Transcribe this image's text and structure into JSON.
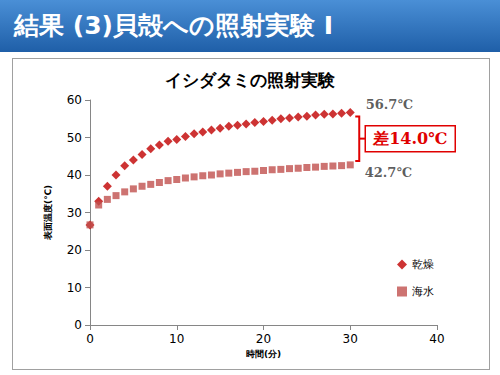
{
  "header": {
    "title": "結果 (3)貝殻への照射実験 I"
  },
  "chart_data": {
    "type": "scatter",
    "title": "イシダタミの照射実験",
    "x_label": "時間(分)",
    "y_label": "表面温度(℃)",
    "x": [
      0,
      1,
      2,
      3,
      4,
      5,
      6,
      7,
      8,
      9,
      10,
      11,
      12,
      13,
      14,
      15,
      16,
      17,
      18,
      19,
      20,
      21,
      22,
      23,
      24,
      25,
      26,
      27,
      28,
      29,
      30
    ],
    "series": [
      {
        "name": "乾燥",
        "color": "#c00000",
        "marker": "diamond",
        "values": [
          26.7,
          33,
          37,
          40,
          42.5,
          44,
          45.5,
          47,
          48,
          49,
          49.5,
          50.3,
          51,
          51.5,
          52,
          52.5,
          53,
          53.3,
          53.6,
          54,
          54.3,
          54.6,
          55,
          55.2,
          55.5,
          55.7,
          56,
          56.2,
          56.3,
          56.5,
          56.7
        ]
      },
      {
        "name": "海水",
        "color": "#c0504d",
        "marker": "square",
        "values": [
          26.7,
          32,
          33.5,
          34.5,
          35.5,
          36.3,
          37,
          37.5,
          38,
          38.5,
          38.8,
          39.2,
          39.5,
          39.8,
          40,
          40.3,
          40.5,
          40.7,
          40.9,
          41,
          41.2,
          41.4,
          41.5,
          41.7,
          41.8,
          42,
          42.1,
          42.3,
          42.4,
          42.5,
          42.7
        ]
      }
    ],
    "xlim": [
      0,
      40
    ],
    "xticks": [
      0,
      10,
      20,
      30,
      40
    ],
    "ylim": [
      0,
      60
    ],
    "yticks": [
      0,
      10,
      20,
      30,
      40,
      50,
      60
    ],
    "grid": false,
    "legend": "right",
    "annotations": [
      {
        "text": "56.7℃",
        "series": "乾燥"
      },
      {
        "text": "42.7℃",
        "series": "海水"
      },
      {
        "text": "差14.0℃",
        "between": [
          "乾燥",
          "海水"
        ]
      }
    ]
  }
}
